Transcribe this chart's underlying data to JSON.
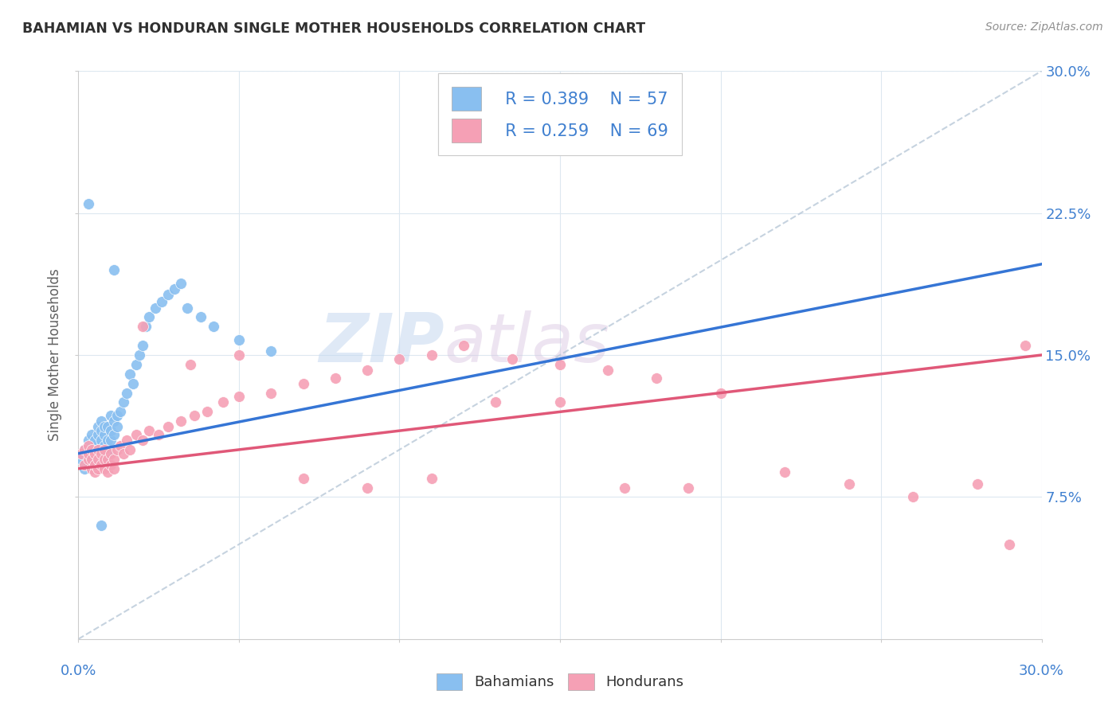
{
  "title": "BAHAMIAN VS HONDURAN SINGLE MOTHER HOUSEHOLDS CORRELATION CHART",
  "source": "Source: ZipAtlas.com",
  "ylabel": "Single Mother Households",
  "xmin": 0.0,
  "xmax": 0.3,
  "ymin": 0.0,
  "ymax": 0.3,
  "yticks": [
    0.075,
    0.15,
    0.225,
    0.3
  ],
  "ytick_labels": [
    "7.5%",
    "15.0%",
    "22.5%",
    "30.0%"
  ],
  "watermark_zip": "ZIP",
  "watermark_atlas": "atlas",
  "legend_r1": "R = 0.389",
  "legend_n1": "N = 57",
  "legend_r2": "R = 0.259",
  "legend_n2": "N = 69",
  "bahamian_color": "#89bff0",
  "honduran_color": "#f5a0b5",
  "trend_blue": "#3575d5",
  "trend_pink": "#e05878",
  "trend_dashed_color": "#b8c8d8",
  "grid_color": "#dde8f0",
  "background": "#ffffff",
  "text_color_blue": "#4080d0",
  "title_color": "#303030",
  "source_color": "#909090",
  "ylabel_color": "#606060",
  "bahamian_x": [
    0.001,
    0.002,
    0.002,
    0.003,
    0.003,
    0.003,
    0.004,
    0.004,
    0.004,
    0.005,
    0.005,
    0.005,
    0.005,
    0.006,
    0.006,
    0.006,
    0.006,
    0.007,
    0.007,
    0.007,
    0.007,
    0.008,
    0.008,
    0.008,
    0.009,
    0.009,
    0.009,
    0.01,
    0.01,
    0.01,
    0.011,
    0.011,
    0.012,
    0.012,
    0.013,
    0.014,
    0.015,
    0.016,
    0.017,
    0.018,
    0.019,
    0.02,
    0.021,
    0.022,
    0.024,
    0.026,
    0.028,
    0.03,
    0.032,
    0.034,
    0.038,
    0.042,
    0.05,
    0.06,
    0.003,
    0.007,
    0.011
  ],
  "bahamian_y": [
    0.095,
    0.09,
    0.1,
    0.093,
    0.098,
    0.105,
    0.095,
    0.1,
    0.108,
    0.095,
    0.102,
    0.098,
    0.105,
    0.095,
    0.1,
    0.108,
    0.112,
    0.098,
    0.105,
    0.11,
    0.115,
    0.102,
    0.108,
    0.112,
    0.098,
    0.105,
    0.112,
    0.105,
    0.11,
    0.118,
    0.108,
    0.115,
    0.112,
    0.118,
    0.12,
    0.125,
    0.13,
    0.14,
    0.135,
    0.145,
    0.15,
    0.155,
    0.165,
    0.17,
    0.175,
    0.178,
    0.182,
    0.185,
    0.188,
    0.175,
    0.17,
    0.165,
    0.158,
    0.152,
    0.23,
    0.06,
    0.195
  ],
  "honduran_x": [
    0.001,
    0.002,
    0.002,
    0.003,
    0.003,
    0.003,
    0.004,
    0.004,
    0.004,
    0.005,
    0.005,
    0.005,
    0.006,
    0.006,
    0.006,
    0.007,
    0.007,
    0.008,
    0.008,
    0.008,
    0.009,
    0.009,
    0.01,
    0.01,
    0.011,
    0.011,
    0.012,
    0.013,
    0.014,
    0.015,
    0.016,
    0.018,
    0.02,
    0.022,
    0.025,
    0.028,
    0.032,
    0.036,
    0.04,
    0.045,
    0.05,
    0.06,
    0.07,
    0.08,
    0.09,
    0.1,
    0.11,
    0.12,
    0.135,
    0.15,
    0.165,
    0.18,
    0.2,
    0.22,
    0.24,
    0.26,
    0.28,
    0.29,
    0.295,
    0.02,
    0.035,
    0.05,
    0.07,
    0.09,
    0.11,
    0.13,
    0.15,
    0.17,
    0.19
  ],
  "honduran_y": [
    0.098,
    0.092,
    0.1,
    0.095,
    0.098,
    0.102,
    0.09,
    0.095,
    0.1,
    0.088,
    0.092,
    0.098,
    0.09,
    0.095,
    0.1,
    0.092,
    0.098,
    0.09,
    0.095,
    0.1,
    0.088,
    0.095,
    0.092,
    0.098,
    0.09,
    0.095,
    0.1,
    0.102,
    0.098,
    0.105,
    0.1,
    0.108,
    0.105,
    0.11,
    0.108,
    0.112,
    0.115,
    0.118,
    0.12,
    0.125,
    0.128,
    0.13,
    0.135,
    0.138,
    0.142,
    0.148,
    0.15,
    0.155,
    0.148,
    0.145,
    0.142,
    0.138,
    0.13,
    0.088,
    0.082,
    0.075,
    0.082,
    0.05,
    0.155,
    0.165,
    0.145,
    0.15,
    0.085,
    0.08,
    0.085,
    0.125,
    0.125,
    0.08,
    0.08
  ],
  "blue_trend_x0": 0.0,
  "blue_trend_y0": 0.098,
  "blue_trend_x1": 0.3,
  "blue_trend_y1": 0.198,
  "pink_trend_x0": 0.0,
  "pink_trend_y0": 0.09,
  "pink_trend_x1": 0.3,
  "pink_trend_y1": 0.15
}
